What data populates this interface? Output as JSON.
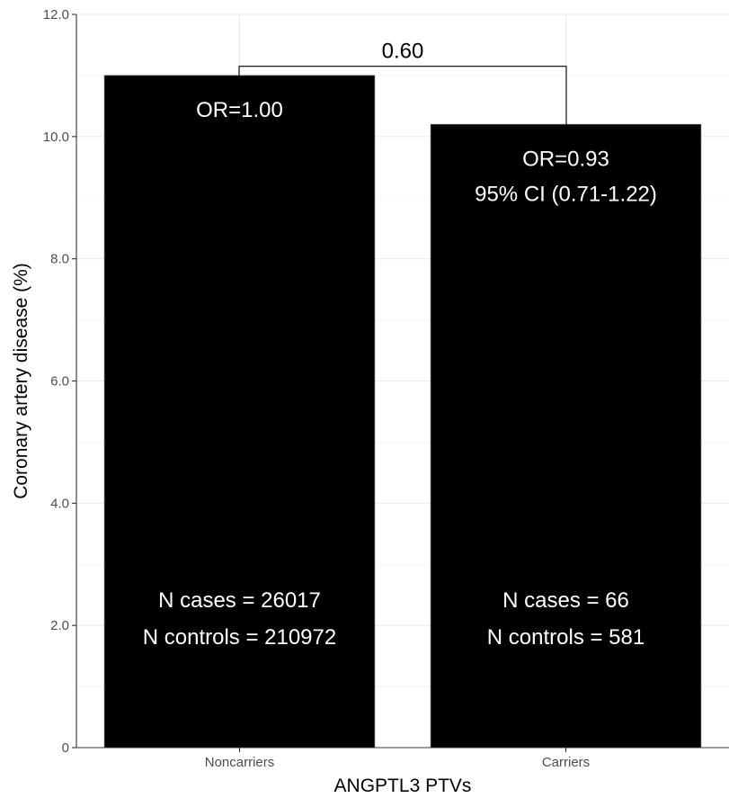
{
  "chart_data": {
    "type": "bar",
    "categories": [
      "Noncarriers",
      "Carriers"
    ],
    "values": [
      11.0,
      10.2
    ],
    "xlabel": "ANGPTL3 PTVs",
    "ylabel": "Coronary artery disease (%)",
    "ylim": [
      0,
      12.0
    ],
    "yticks": [
      0,
      2.0,
      4.0,
      6.0,
      8.0,
      10.0,
      12.0
    ],
    "ytick_labels": [
      "0",
      "2.0",
      "4.0",
      "6.0",
      "8.0",
      "10.0",
      "12.0"
    ],
    "grid": true,
    "legend": "none",
    "bar_color": "#000000",
    "bar_annotations": [
      {
        "top_lines": [
          "OR=1.00"
        ],
        "bottom_lines": [
          "N cases = 26017",
          "N controls = 210972"
        ]
      },
      {
        "top_lines": [
          "OR=0.93",
          "95% CI (0.71-1.22)"
        ],
        "bottom_lines": [
          "N cases = 66",
          "N controls = 581"
        ]
      }
    ],
    "significance": {
      "label": "0.60",
      "between": [
        "Noncarriers",
        "Carriers"
      ]
    }
  }
}
